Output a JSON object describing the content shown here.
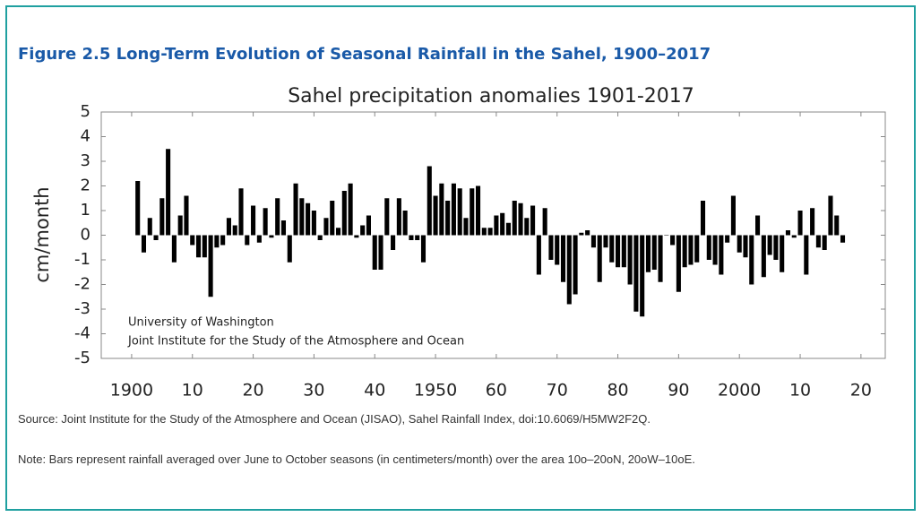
{
  "figure_title": "Figure 2.5   Long-Term Evolution of Seasonal Rainfall in the Sahel, 1900–2017",
  "chart_data": {
    "type": "bar",
    "title": "Sahel precipitation anomalies 1901-2017",
    "y_label": "cm/month",
    "annotations": [
      "University of Washington",
      "Joint Institute for the Study of the Atmosphere and Ocean"
    ],
    "color": "#000000",
    "x": [
      1901,
      1902,
      1903,
      1904,
      1905,
      1906,
      1907,
      1908,
      1909,
      1910,
      1911,
      1912,
      1913,
      1914,
      1915,
      1916,
      1917,
      1918,
      1919,
      1920,
      1921,
      1922,
      1923,
      1924,
      1925,
      1926,
      1927,
      1928,
      1929,
      1930,
      1931,
      1932,
      1933,
      1934,
      1935,
      1936,
      1937,
      1938,
      1939,
      1940,
      1941,
      1942,
      1943,
      1944,
      1945,
      1946,
      1947,
      1948,
      1949,
      1950,
      1951,
      1952,
      1953,
      1954,
      1955,
      1956,
      1957,
      1958,
      1959,
      1960,
      1961,
      1962,
      1963,
      1964,
      1965,
      1966,
      1967,
      1968,
      1969,
      1970,
      1971,
      1972,
      1973,
      1974,
      1975,
      1976,
      1977,
      1978,
      1979,
      1980,
      1981,
      1982,
      1983,
      1984,
      1985,
      1986,
      1987,
      1988,
      1989,
      1990,
      1991,
      1992,
      1993,
      1994,
      1995,
      1996,
      1997,
      1998,
      1999,
      2000,
      2001,
      2002,
      2003,
      2004,
      2005,
      2006,
      2007,
      2008,
      2009,
      2010,
      2011,
      2012,
      2013,
      2014,
      2015,
      2016,
      2017
    ],
    "values": [
      2.2,
      -0.7,
      0.7,
      -0.2,
      1.5,
      3.5,
      -1.1,
      0.8,
      1.6,
      -0.4,
      -0.9,
      -0.9,
      -2.5,
      -0.5,
      -0.4,
      0.7,
      0.4,
      1.9,
      -0.4,
      1.2,
      -0.3,
      1.1,
      -0.1,
      1.5,
      0.6,
      -1.1,
      2.1,
      1.5,
      1.3,
      1.0,
      -0.2,
      0.7,
      1.4,
      0.3,
      1.8,
      2.1,
      -0.1,
      0.4,
      0.8,
      -1.4,
      -1.4,
      1.5,
      -0.6,
      1.5,
      1.0,
      -0.2,
      -0.2,
      -1.1,
      2.8,
      1.6,
      2.1,
      1.4,
      2.1,
      1.9,
      0.7,
      1.9,
      2.0,
      0.3,
      0.3,
      0.8,
      0.9,
      0.5,
      1.4,
      1.3,
      0.7,
      1.2,
      -1.6,
      1.1,
      -1.0,
      -1.2,
      -1.9,
      -2.8,
      -2.4,
      0.1,
      0.2,
      -0.5,
      -1.9,
      -0.5,
      -1.1,
      -1.3,
      -1.3,
      -2.0,
      -3.1,
      -3.3,
      -1.5,
      -1.4,
      -1.9,
      0.0,
      -0.4,
      -2.3,
      -1.3,
      -1.2,
      -1.1,
      1.4,
      -1.0,
      -1.2,
      -1.6,
      -0.3,
      1.6,
      -0.7,
      -0.9,
      -2.0,
      0.8,
      -1.7,
      -0.8,
      -1.0,
      -1.5,
      0.2,
      -0.1,
      1.0,
      -1.6,
      1.1,
      -0.5,
      -0.6,
      1.6,
      0.8,
      -0.3
    ],
    "xlim": [
      1895,
      2024
    ],
    "xticks": [
      1900,
      {
        "value": 1910,
        "label": "10"
      },
      {
        "value": 1920,
        "label": "20"
      },
      {
        "value": 1930,
        "label": "30"
      },
      {
        "value": 1940,
        "label": "40"
      },
      1950,
      {
        "value": 1960,
        "label": "60"
      },
      {
        "value": 1970,
        "label": "70"
      },
      {
        "value": 1980,
        "label": "80"
      },
      {
        "value": 1990,
        "label": "90"
      },
      2000,
      {
        "value": 2010,
        "label": "10"
      },
      {
        "value": 2020,
        "label": "20"
      }
    ],
    "ylim": [
      -5,
      5
    ],
    "yticks": [
      5,
      4,
      3,
      2,
      1,
      0,
      -1,
      -2,
      -3,
      -4,
      -5
    ]
  },
  "source": "Source: Joint Institute for the Study of the Atmosphere and Ocean (JISAO), Sahel Rainfall Index, doi:10.6069/H5MW2F2Q.",
  "note": "Note: Bars represent rainfall averaged over June to October seasons (in centimeters/month) over the area 10o–20oN, 20oW–10oE."
}
